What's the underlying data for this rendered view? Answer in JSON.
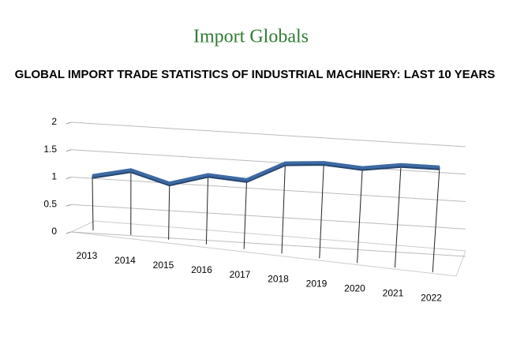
{
  "logo": "Import Globals",
  "chart_data": {
    "type": "line3d",
    "title": "GLOBAL IMPORT TRADE STATISTICS OF INDUSTRIAL MACHINERY: LAST 10 YEARS",
    "categories": [
      "2013",
      "2014",
      "2015",
      "2016",
      "2017",
      "2018",
      "2019",
      "2020",
      "2021",
      "2022"
    ],
    "values": [
      1.05,
      1.2,
      1.0,
      1.2,
      1.15,
      1.5,
      1.55,
      1.5,
      1.6,
      1.6
    ],
    "color": "#3d6aa3",
    "ylim": [
      0,
      2
    ],
    "yticks": [
      0,
      0.5,
      1,
      1.5,
      2
    ],
    "grid": true
  }
}
